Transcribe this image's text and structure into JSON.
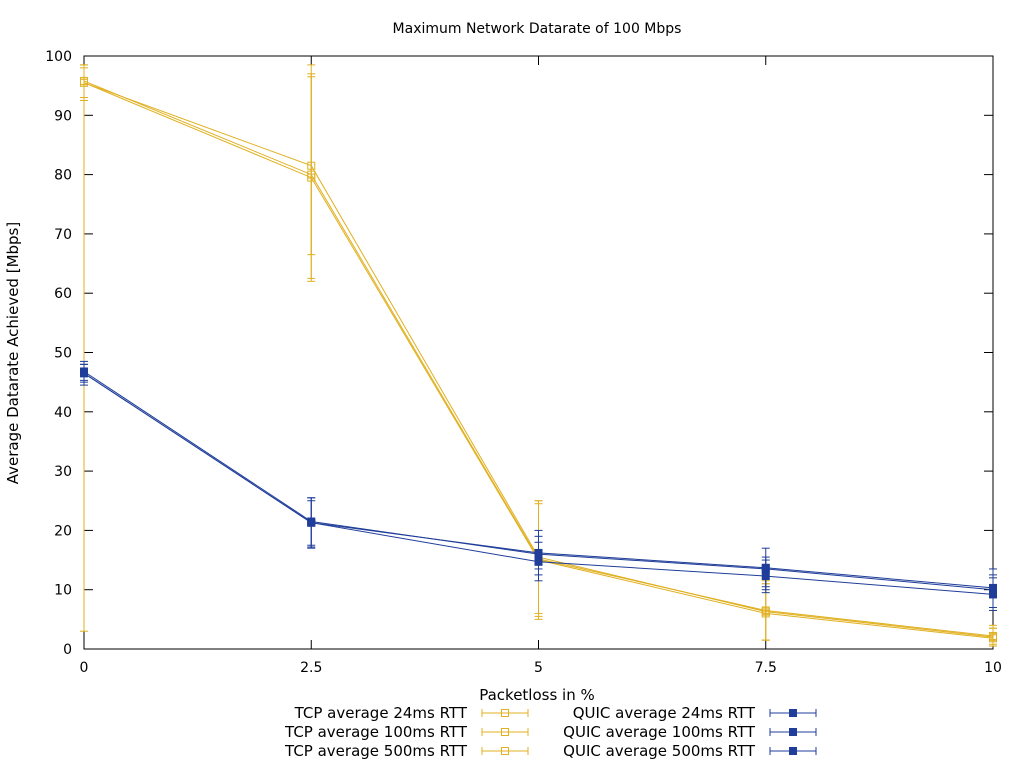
{
  "chart_data": {
    "type": "line",
    "title": "Maximum Network Datarate of 100 Mbps",
    "xlabel": "Packetloss in %",
    "ylabel": "Average Datarate Achieved [Mbps]",
    "xlim": [
      0,
      10
    ],
    "ylim": [
      0,
      100
    ],
    "x_ticks": [
      0,
      2.5,
      5,
      7.5,
      10
    ],
    "x_tick_labels": [
      "0",
      "2.5",
      "5",
      "7.5",
      "10"
    ],
    "y_ticks": [
      0,
      10,
      20,
      30,
      40,
      50,
      60,
      70,
      80,
      90,
      100
    ],
    "y_tick_labels": [
      "0",
      "10",
      "20",
      "30",
      "40",
      "50",
      "60",
      "70",
      "80",
      "90",
      "100"
    ],
    "grid": false,
    "legend_position": "bottom",
    "x": [
      0,
      2.5,
      5,
      7.5,
      10
    ],
    "series": [
      {
        "name": "TCP average 24ms RTT",
        "color": "#e0b020",
        "marker": "open-square",
        "values": [
          95.5,
          81.5,
          15.5,
          6.3,
          2.0
        ],
        "err_low": [
          3.0,
          62.5,
          6.0,
          1.5,
          0.5
        ],
        "err_high": [
          98.5,
          98.5,
          25.0,
          11.0,
          3.5
        ]
      },
      {
        "name": "TCP average 100ms RTT",
        "color": "#e0b020",
        "marker": "open-square",
        "values": [
          95.8,
          80.0,
          15.2,
          6.5,
          2.2
        ],
        "err_low": [
          93.0,
          62.0,
          5.5,
          1.5,
          0.8
        ],
        "err_high": [
          98.5,
          97.0,
          25.0,
          11.5,
          4.0
        ]
      },
      {
        "name": "TCP average 500ms RTT",
        "color": "#e0b020",
        "marker": "open-square",
        "values": [
          95.5,
          79.5,
          15.0,
          6.0,
          1.8
        ],
        "err_low": [
          92.5,
          66.5,
          5.0,
          1.5,
          0.5
        ],
        "err_high": [
          98.0,
          96.5,
          24.5,
          11.0,
          3.5
        ]
      },
      {
        "name": "QUIC average 24ms RTT",
        "color": "#1f3d99",
        "marker": "filled-square",
        "values": [
          46.5,
          21.3,
          16.2,
          13.7,
          10.3
        ],
        "err_low": [
          45.0,
          17.2,
          13.5,
          10.5,
          7.0
        ],
        "err_high": [
          48.0,
          25.5,
          19.0,
          17.0,
          13.5
        ]
      },
      {
        "name": "QUIC average 100ms RTT",
        "color": "#1f3d99",
        "marker": "filled-square",
        "values": [
          46.8,
          21.5,
          16.0,
          13.5,
          10.0
        ],
        "err_low": [
          45.3,
          17.5,
          12.5,
          10.0,
          7.0
        ],
        "err_high": [
          48.5,
          25.5,
          20.0,
          15.0,
          12.5
        ]
      },
      {
        "name": "QUIC average 500ms RTT",
        "color": "#1f3d99",
        "marker": "filled-square",
        "values": [
          46.5,
          21.3,
          14.7,
          12.3,
          9.2
        ],
        "err_low": [
          44.5,
          17.0,
          11.5,
          9.5,
          6.5
        ],
        "err_high": [
          48.0,
          25.0,
          18.0,
          15.5,
          12.0
        ]
      }
    ]
  }
}
